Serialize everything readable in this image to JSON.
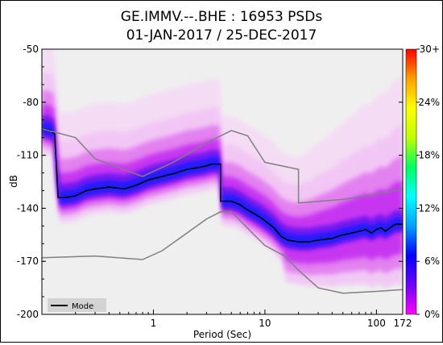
{
  "chart_data": {
    "type": "heatmap",
    "title": "GE.IMMV.--.BHE : 16953 PSDs",
    "subtitle": "01-JAN-2017 / 25-DEC-2017",
    "xlabel": "Period (Sec)",
    "ylabel": "dB",
    "x_scale": "log",
    "xlim": [
      0.1,
      172
    ],
    "ylim": [
      -200,
      -50
    ],
    "x_ticks": [
      {
        "value": 1,
        "label": "1"
      },
      {
        "value": 10,
        "label": "10"
      },
      {
        "value": 100,
        "label": "100"
      },
      {
        "value": 172,
        "label": "172"
      }
    ],
    "y_ticks": [
      {
        "value": -50,
        "label": "-50"
      },
      {
        "value": -80,
        "label": "-80"
      },
      {
        "value": -110,
        "label": "-110"
      },
      {
        "value": -140,
        "label": "-140"
      },
      {
        "value": -170,
        "label": "-170"
      },
      {
        "value": -200,
        "label": "-200"
      }
    ],
    "colorbar": {
      "ticks": [
        {
          "value": 30,
          "label": "30+"
        },
        {
          "value": 24,
          "label": "24%"
        },
        {
          "value": 18,
          "label": "18%"
        },
        {
          "value": 12,
          "label": "12%"
        },
        {
          "value": 6,
          "label": "6%"
        },
        {
          "value": 0,
          "label": "0%"
        }
      ],
      "colors": [
        "#ff00ff",
        "#6e00ff",
        "#0000ff",
        "#00a0ff",
        "#00ffff",
        "#00ff60",
        "#c0ff00",
        "#ffff00",
        "#ffa000",
        "#ff0000"
      ]
    },
    "legend": {
      "label": "Mode",
      "placement": "bottom-left"
    },
    "series": [
      {
        "name": "Mode",
        "color": "#000000",
        "points": [
          [
            0.1,
            -95
          ],
          [
            0.12,
            -96
          ],
          [
            0.13,
            -98
          ],
          [
            0.14,
            -134
          ],
          [
            0.16,
            -134
          ],
          [
            0.2,
            -133
          ],
          [
            0.25,
            -130
          ],
          [
            0.3,
            -129
          ],
          [
            0.4,
            -128
          ],
          [
            0.55,
            -129
          ],
          [
            0.7,
            -127
          ],
          [
            0.9,
            -124
          ],
          [
            1.2,
            -122
          ],
          [
            1.6,
            -120
          ],
          [
            2.0,
            -118
          ],
          [
            2.5,
            -117
          ],
          [
            3.0,
            -116
          ],
          [
            3.3,
            -115
          ],
          [
            4.0,
            -115
          ],
          [
            4.0,
            -136
          ],
          [
            5.0,
            -136
          ],
          [
            6.0,
            -138
          ],
          [
            7.0,
            -141
          ],
          [
            8.0,
            -143
          ],
          [
            9.0,
            -145
          ],
          [
            10,
            -147
          ],
          [
            12,
            -151
          ],
          [
            14,
            -156
          ],
          [
            16,
            -158
          ],
          [
            20,
            -159
          ],
          [
            25,
            -159
          ],
          [
            30,
            -158
          ],
          [
            40,
            -157
          ],
          [
            50,
            -155
          ],
          [
            60,
            -154
          ],
          [
            70,
            -153
          ],
          [
            80,
            -152
          ],
          [
            90,
            -154
          ],
          [
            100,
            -152
          ],
          [
            110,
            -151
          ],
          [
            120,
            -153
          ],
          [
            140,
            -150
          ],
          [
            150,
            -149
          ],
          [
            172,
            -149
          ]
        ]
      },
      {
        "name": "",
        "color": "#808080",
        "points": [
          [
            0.1,
            -95
          ],
          [
            0.2,
            -100
          ],
          [
            0.3,
            -112
          ],
          [
            0.8,
            -122
          ],
          [
            1.5,
            -114
          ],
          [
            3,
            -103
          ],
          [
            5,
            -96
          ],
          [
            7,
            -99
          ],
          [
            10,
            -114
          ],
          [
            20,
            -118
          ],
          [
            20,
            -137
          ],
          [
            50,
            -135
          ],
          [
            100,
            -132
          ],
          [
            172,
            -129
          ]
        ]
      },
      {
        "name": "",
        "color": "#808080",
        "points": [
          [
            0.1,
            -168
          ],
          [
            0.3,
            -167
          ],
          [
            0.8,
            -169
          ],
          [
            1.2,
            -164
          ],
          [
            2,
            -154
          ],
          [
            3,
            -146
          ],
          [
            4,
            -142
          ],
          [
            5,
            -142
          ],
          [
            6,
            -147
          ],
          [
            8,
            -155
          ],
          [
            10,
            -161
          ],
          [
            15,
            -167
          ],
          [
            20,
            -175
          ],
          [
            30,
            -185
          ],
          [
            50,
            -188
          ],
          [
            100,
            -187
          ],
          [
            172,
            -186
          ]
        ]
      }
    ]
  }
}
